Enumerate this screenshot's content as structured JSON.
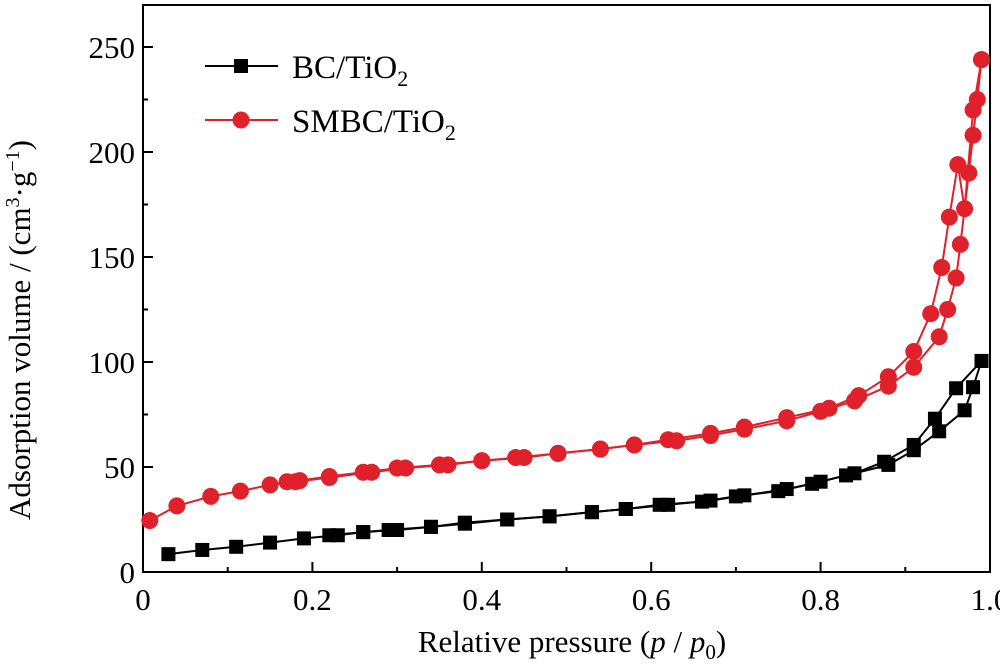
{
  "chart_data": {
    "type": "line",
    "xlabel": {
      "pre": "Relative pressure (",
      "p": "p",
      "slash": " / ",
      "p0": "p",
      "sub0": "0",
      "post": ")"
    },
    "ylabel": {
      "pre": "Adsorption volume / (cm",
      "sup3": "3",
      "mid": "·g",
      "supm1": "−1",
      "post": ")"
    },
    "xlim": [
      0,
      1.0
    ],
    "ylim": [
      0,
      270
    ],
    "xticks": [
      0,
      0.2,
      0.4,
      0.6,
      0.8,
      1.0
    ],
    "xtick_labels": [
      "0",
      "0.2",
      "0.4",
      "0.6",
      "0.8",
      "1.0"
    ],
    "yticks": [
      0,
      50,
      100,
      150,
      200,
      250
    ],
    "ytick_labels": [
      "0",
      "50",
      "100",
      "150",
      "200",
      "250"
    ],
    "legend_placement": "top-left",
    "grid": false,
    "series": [
      {
        "name": "BC/TiO2",
        "legend": {
          "base": "BC/TiO",
          "sub": "2"
        },
        "color": "#000000",
        "marker": "square",
        "adsorption": [
          [
            0.03,
            8.5
          ],
          [
            0.07,
            10.5
          ],
          [
            0.11,
            12
          ],
          [
            0.15,
            14
          ],
          [
            0.19,
            16
          ],
          [
            0.23,
            17.5
          ],
          [
            0.26,
            19
          ],
          [
            0.3,
            20
          ],
          [
            0.34,
            21.5
          ],
          [
            0.38,
            23.5
          ],
          [
            0.43,
            25
          ],
          [
            0.48,
            26.5
          ],
          [
            0.53,
            28.5
          ],
          [
            0.57,
            30
          ],
          [
            0.61,
            32
          ],
          [
            0.66,
            33.5
          ],
          [
            0.7,
            36
          ],
          [
            0.75,
            38.5
          ],
          [
            0.79,
            42
          ],
          [
            0.83,
            46
          ],
          [
            0.88,
            51
          ],
          [
            0.91,
            58
          ],
          [
            0.94,
            67
          ],
          [
            0.97,
            77
          ],
          [
            0.98,
            88
          ],
          [
            0.99,
            100.5
          ]
        ],
        "desorption": [
          [
            0.99,
            100.5
          ],
          [
            0.96,
            87.5
          ],
          [
            0.935,
            73
          ],
          [
            0.91,
            60.5
          ],
          [
            0.875,
            52.5
          ],
          [
            0.84,
            47
          ],
          [
            0.8,
            43
          ],
          [
            0.76,
            39.5
          ],
          [
            0.71,
            36.5
          ],
          [
            0.67,
            34
          ],
          [
            0.62,
            32
          ],
          [
            0.57,
            30
          ],
          [
            0.53,
            28.5
          ],
          [
            0.48,
            26.5
          ],
          [
            0.43,
            25
          ],
          [
            0.38,
            23
          ],
          [
            0.34,
            21.5
          ],
          [
            0.29,
            20
          ],
          [
            0.26,
            19
          ],
          [
            0.22,
            17.5
          ]
        ]
      },
      {
        "name": "SMBC/TiO2",
        "legend": {
          "base": "SMBC/TiO",
          "sub": "2"
        },
        "color": "#e0202a",
        "marker": "circle",
        "adsorption": [
          [
            0.008,
            24.5
          ],
          [
            0.04,
            31.5
          ],
          [
            0.08,
            36
          ],
          [
            0.115,
            38.5
          ],
          [
            0.15,
            41.5
          ],
          [
            0.185,
            43.5
          ],
          [
            0.22,
            45.5
          ],
          [
            0.26,
            47.5
          ],
          [
            0.3,
            49.5
          ],
          [
            0.35,
            51
          ],
          [
            0.4,
            53
          ],
          [
            0.44,
            54.5
          ],
          [
            0.49,
            56.5
          ],
          [
            0.54,
            58.5
          ],
          [
            0.58,
            60.5
          ],
          [
            0.63,
            62.5
          ],
          [
            0.67,
            65
          ],
          [
            0.71,
            68
          ],
          [
            0.76,
            72
          ],
          [
            0.8,
            76.5
          ],
          [
            0.84,
            81.5
          ],
          [
            0.88,
            88.5
          ],
          [
            0.91,
            97.5
          ],
          [
            0.94,
            112
          ],
          [
            0.95,
            125
          ],
          [
            0.96,
            140
          ],
          [
            0.965,
            156
          ],
          [
            0.975,
            190
          ],
          [
            0.98,
            208
          ],
          [
            0.985,
            225
          ],
          [
            0.99,
            244
          ]
        ],
        "desorption": [
          [
            0.99,
            244
          ],
          [
            0.98,
            220
          ],
          [
            0.97,
            173
          ],
          [
            0.962,
            194
          ],
          [
            0.952,
            169
          ],
          [
            0.943,
            145
          ],
          [
            0.93,
            123
          ],
          [
            0.91,
            105
          ],
          [
            0.88,
            93
          ],
          [
            0.845,
            84
          ],
          [
            0.81,
            78
          ],
          [
            0.76,
            73.5
          ],
          [
            0.71,
            69
          ],
          [
            0.67,
            66
          ],
          [
            0.62,
            63
          ],
          [
            0.58,
            60.5
          ],
          [
            0.54,
            58.5
          ],
          [
            0.49,
            56.5
          ],
          [
            0.45,
            54.5
          ],
          [
            0.4,
            53
          ],
          [
            0.36,
            51
          ],
          [
            0.31,
            49.5
          ],
          [
            0.27,
            47.5
          ],
          [
            0.22,
            45
          ],
          [
            0.18,
            43
          ],
          [
            0.17,
            43
          ]
        ]
      }
    ]
  }
}
